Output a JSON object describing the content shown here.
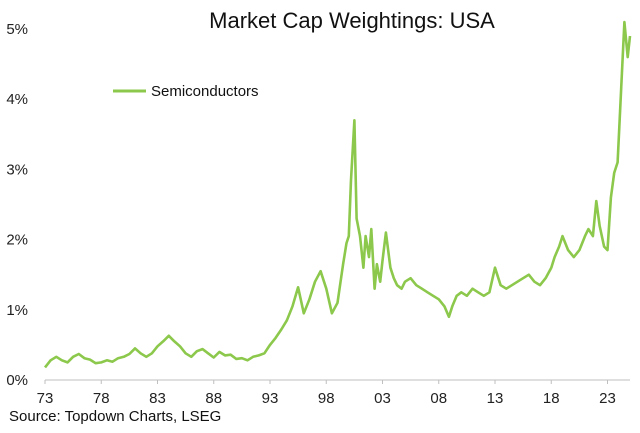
{
  "chart_data": {
    "type": "line",
    "title": "Market Cap Weightings: USA",
    "xlabel": "",
    "ylabel": "",
    "source": "Source: Topdown Charts, LSEG",
    "x_tick_labels": [
      "73",
      "78",
      "83",
      "88",
      "93",
      "98",
      "03",
      "08",
      "13",
      "18",
      "23"
    ],
    "x_tick_years": [
      1973,
      1978,
      1983,
      1988,
      1993,
      1998,
      2003,
      2008,
      2013,
      2018,
      2023
    ],
    "y_tick_labels": [
      "0%",
      "1%",
      "2%",
      "3%",
      "4%",
      "5%"
    ],
    "y_tick_values": [
      0,
      1,
      2,
      3,
      4,
      5
    ],
    "xlim": [
      1973,
      2025
    ],
    "ylim": [
      0,
      5
    ],
    "legend_position": "top-left",
    "colors": {
      "series": "#8cc84b",
      "axis": "#bfbfbf"
    },
    "series": [
      {
        "name": "Semiconductors",
        "x": [
          1973.0,
          1973.5,
          1974.0,
          1974.5,
          1975.0,
          1975.5,
          1976.0,
          1976.5,
          1977.0,
          1977.5,
          1978.0,
          1978.5,
          1979.0,
          1979.5,
          1980.0,
          1980.5,
          1981.0,
          1981.5,
          1982.0,
          1982.5,
          1983.0,
          1983.5,
          1984.0,
          1984.5,
          1985.0,
          1985.5,
          1986.0,
          1986.5,
          1987.0,
          1987.5,
          1988.0,
          1988.5,
          1989.0,
          1989.5,
          1990.0,
          1990.5,
          1991.0,
          1991.5,
          1992.0,
          1992.5,
          1993.0,
          1993.5,
          1994.0,
          1994.5,
          1995.0,
          1995.5,
          1996.0,
          1996.5,
          1997.0,
          1997.5,
          1998.0,
          1998.5,
          1999.0,
          1999.5,
          1999.8,
          2000.0,
          2000.2,
          2000.5,
          2000.7,
          2001.0,
          2001.3,
          2001.5,
          2001.8,
          2002.0,
          2002.3,
          2002.5,
          2002.8,
          2003.0,
          2003.3,
          2003.7,
          2004.0,
          2004.3,
          2004.7,
          2005.0,
          2005.5,
          2006.0,
          2006.5,
          2007.0,
          2007.5,
          2008.0,
          2008.5,
          2008.9,
          2009.2,
          2009.6,
          2010.0,
          2010.5,
          2011.0,
          2011.5,
          2012.0,
          2012.5,
          2013.0,
          2013.5,
          2014.0,
          2014.5,
          2015.0,
          2015.5,
          2016.0,
          2016.5,
          2017.0,
          2017.5,
          2018.0,
          2018.3,
          2018.7,
          2019.0,
          2019.5,
          2020.0,
          2020.5,
          2021.0,
          2021.3,
          2021.7,
          2022.0,
          2022.3,
          2022.7,
          2023.0,
          2023.3,
          2023.6,
          2023.9,
          2024.2,
          2024.5,
          2024.8,
          2025.0
        ],
        "values": [
          0.18,
          0.28,
          0.33,
          0.28,
          0.25,
          0.33,
          0.37,
          0.31,
          0.29,
          0.24,
          0.25,
          0.28,
          0.26,
          0.31,
          0.33,
          0.37,
          0.45,
          0.38,
          0.33,
          0.38,
          0.48,
          0.55,
          0.63,
          0.55,
          0.48,
          0.38,
          0.33,
          0.41,
          0.44,
          0.38,
          0.32,
          0.4,
          0.35,
          0.36,
          0.3,
          0.31,
          0.28,
          0.33,
          0.35,
          0.38,
          0.5,
          0.6,
          0.72,
          0.85,
          1.05,
          1.32,
          0.95,
          1.15,
          1.4,
          1.55,
          1.3,
          0.95,
          1.1,
          1.65,
          1.95,
          2.05,
          2.85,
          3.7,
          2.3,
          2.05,
          1.6,
          2.05,
          1.75,
          2.15,
          1.3,
          1.65,
          1.4,
          1.7,
          2.1,
          1.6,
          1.45,
          1.35,
          1.3,
          1.4,
          1.45,
          1.35,
          1.3,
          1.25,
          1.2,
          1.15,
          1.05,
          0.9,
          1.05,
          1.2,
          1.25,
          1.2,
          1.3,
          1.25,
          1.2,
          1.25,
          1.6,
          1.35,
          1.3,
          1.35,
          1.4,
          1.45,
          1.5,
          1.4,
          1.35,
          1.45,
          1.6,
          1.75,
          1.9,
          2.05,
          1.85,
          1.75,
          1.85,
          2.05,
          2.15,
          2.05,
          2.55,
          2.2,
          1.9,
          1.85,
          2.6,
          2.95,
          3.1,
          4.1,
          5.1,
          4.6,
          4.9
        ]
      }
    ]
  }
}
